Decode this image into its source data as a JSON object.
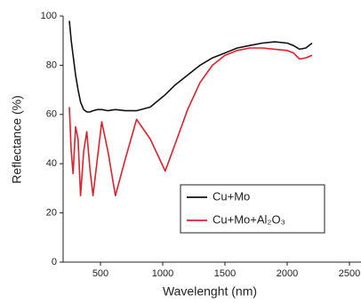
{
  "chart_data": {
    "type": "line",
    "xlabel": "Wavelenght (nm)",
    "ylabel": "Reflectance (%)",
    "x": [
      250,
      265,
      280,
      300,
      320,
      340,
      365,
      390,
      415,
      440,
      475,
      510,
      560,
      620,
      700,
      790,
      900,
      1020,
      1100,
      1200,
      1300,
      1400,
      1500,
      1600,
      1700,
      1800,
      1900,
      2000,
      2050,
      2100,
      2150,
      2200
    ],
    "series": [
      {
        "name": "Cu+Mo",
        "color": "#111111",
        "values": [
          98,
          90,
          84,
          76,
          70,
          65,
          62,
          61,
          61,
          61.5,
          62,
          62,
          61.5,
          62,
          61.5,
          61.5,
          63,
          68,
          72,
          76,
          80,
          83,
          85,
          87,
          88,
          89,
          89.5,
          89,
          88,
          86.5,
          87,
          89
        ]
      },
      {
        "name": "Cu+Mo+Al₂O₃",
        "color": "#e0202a",
        "values": [
          63,
          45,
          36,
          55,
          50,
          27,
          45,
          53,
          38,
          27,
          42,
          57,
          45,
          27,
          42,
          58,
          50,
          37,
          48,
          62,
          73,
          80,
          84,
          86,
          87,
          87,
          86.5,
          86,
          85,
          82.5,
          83,
          84
        ]
      }
    ],
    "xlim": [
      200,
      2500
    ],
    "xticks": [
      500,
      1000,
      1500,
      2000,
      2500
    ],
    "ylim": [
      0,
      100
    ],
    "yticks": [
      0,
      20,
      40,
      60,
      80,
      100
    ],
    "legend": "lower right"
  }
}
